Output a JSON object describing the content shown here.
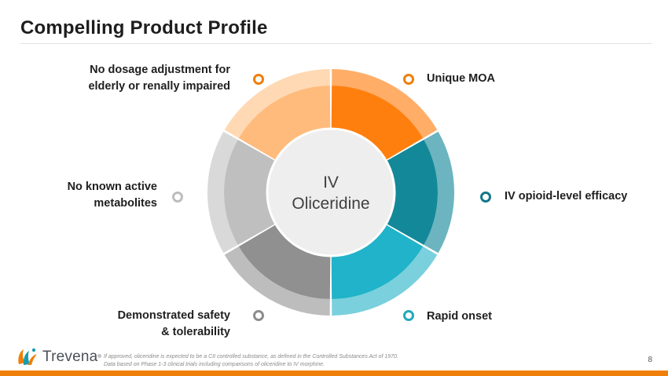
{
  "slide": {
    "title": "Compelling Product Profile",
    "page_number": "8"
  },
  "center": {
    "line1": "IV",
    "line2": "Oliceridine"
  },
  "segments": [
    {
      "id": "unique-moa",
      "lines": [
        "Unique MOA"
      ],
      "color": "#ff7f0e",
      "ring_color": "#ffad67",
      "dot_color": "#f07f09"
    },
    {
      "id": "iv-opioid-level-efficacy",
      "lines": [
        "IV opioid-level efficacy"
      ],
      "color": "#138899",
      "ring_color": "#6cb4bf",
      "dot_color": "#13778a"
    },
    {
      "id": "rapid-onset",
      "lines": [
        "Rapid onset"
      ],
      "color": "#20b3c9",
      "ring_color": "#7ad0dd",
      "dot_color": "#23a8bd"
    },
    {
      "id": "demonstrated-safety",
      "lines": [
        "Demonstrated safety",
        "& tolerability"
      ],
      "color": "#909090",
      "ring_color": "#bdbdbd",
      "dot_color": "#8c8c8c"
    },
    {
      "id": "no-known-active-metabolites",
      "lines": [
        "No known active",
        "metabolites"
      ],
      "color": "#bfbfbf",
      "ring_color": "#d9d9d9",
      "dot_color": "#bdbdbd"
    },
    {
      "id": "no-dosage-adjustment",
      "lines": [
        "No dosage adjustment for",
        "elderly or renally impaired"
      ],
      "color": "#ffbb7c",
      "ring_color": "#ffd9b3",
      "dot_color": "#f07f09"
    }
  ],
  "footnote": {
    "line1": "If approved, oliceridine is expected to be a CII controlled substance, as defined in the Controlled Substances Act of 1970.",
    "line2": "Data based on Phase 1-3 clinical trials including comparisons of oliceridine to IV morphine."
  },
  "logo": {
    "text": "Trevena",
    "tm": "®",
    "icon": "trevena-flower-icon",
    "colors": {
      "orange": "#f07f09",
      "teal": "#1a9bb0"
    }
  }
}
